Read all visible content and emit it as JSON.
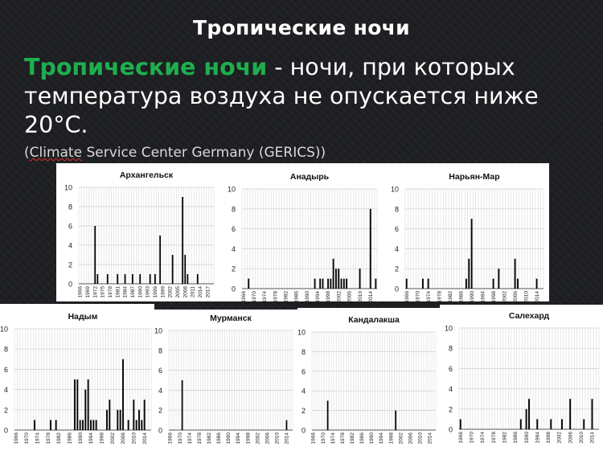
{
  "slide": {
    "title": "Тропические ночи",
    "definition_term": "Тропические ночи",
    "definition_rest": " - ночи, при которых температура воздуха не опускается ниже 20°С.",
    "source_open": "(",
    "source_word": "Climate",
    "source_rest": " Service Center Germany (GERICS))"
  },
  "chart_data": [
    {
      "type": "bar",
      "title": "Архангельск",
      "ylim": [
        0,
        10
      ],
      "yticks": [
        "0",
        "2",
        "4",
        "6",
        "8",
        "10"
      ],
      "xticks": [
        "1966",
        "1969",
        "1972",
        "1975",
        "1978",
        "1981",
        "1984",
        "1987",
        "1990",
        "1993",
        "1996",
        "1999",
        "2002",
        "2005",
        "2008",
        "2011",
        "2014",
        "2017"
      ],
      "x": [
        1972,
        1973,
        1977,
        1981,
        1984,
        1987,
        1990,
        1994,
        1996,
        1998,
        2003,
        2007,
        2008,
        2009,
        2013
      ],
      "values": [
        6,
        1,
        1,
        1,
        1,
        1,
        1,
        1,
        1,
        5,
        3,
        9,
        3,
        1,
        1
      ],
      "grid": true
    },
    {
      "type": "bar",
      "title": "Анадырь",
      "ylim": [
        0,
        10
      ],
      "yticks": [
        "0",
        "2",
        "4",
        "6",
        "8",
        "10"
      ],
      "xticks": [
        "1966",
        "1970",
        "1974",
        "1978",
        "1982",
        "1986",
        "1990",
        "1994",
        "1998",
        "2002",
        "2006",
        "2010",
        "2014"
      ],
      "x": [
        1968,
        1993,
        1995,
        1996,
        1998,
        1999,
        2000,
        2001,
        2002,
        2003,
        2004,
        2005,
        2010,
        2014,
        2016
      ],
      "values": [
        1,
        1,
        1,
        1,
        1,
        1,
        3,
        2,
        2,
        1,
        1,
        1,
        2,
        8,
        1
      ],
      "grid": true
    },
    {
      "type": "bar",
      "title": "Нарьян-Мар",
      "ylim": [
        0,
        10
      ],
      "yticks": [
        "0",
        "2",
        "4",
        "6",
        "8",
        "10"
      ],
      "xticks": [
        "1966",
        "1970",
        "1974",
        "1978",
        "1982",
        "1986",
        "1990",
        "1994",
        "1998",
        "2002",
        "2006",
        "2010",
        "2014"
      ],
      "x": [
        1966,
        1972,
        1974,
        1988,
        1989,
        1990,
        1998,
        2000,
        2006,
        2007,
        2014
      ],
      "values": [
        1,
        1,
        1,
        1,
        3,
        7,
        1,
        2,
        3,
        1,
        1
      ],
      "grid": true
    },
    {
      "type": "bar",
      "title": "Надым",
      "ylim": [
        0,
        10
      ],
      "yticks": [
        "0",
        "2",
        "4",
        "6",
        "8",
        "10"
      ],
      "xticks": [
        "1966",
        "1970",
        "1974",
        "1978",
        "1982",
        "1986",
        "1990",
        "1994",
        "1998",
        "2002",
        "2006",
        "2010",
        "2014"
      ],
      "x": [
        1973,
        1979,
        1981,
        1988,
        1989,
        1990,
        1991,
        1992,
        1993,
        1994,
        1995,
        1996,
        2000,
        2001,
        2004,
        2005,
        2006,
        2008,
        2010,
        2011,
        2012,
        2013,
        2014
      ],
      "values": [
        1,
        1,
        1,
        5,
        5,
        1,
        1,
        4,
        5,
        1,
        1,
        1,
        2,
        3,
        2,
        2,
        7,
        1,
        3,
        1,
        2,
        1,
        3
      ],
      "grid": true
    },
    {
      "type": "bar",
      "title": "Мурманск",
      "ylim": [
        0,
        10
      ],
      "yticks": [
        "0",
        "2",
        "4",
        "6",
        "8",
        "10"
      ],
      "xticks": [
        "1966",
        "1970",
        "1974",
        "1978",
        "1982",
        "1986",
        "1990",
        "1994",
        "1998",
        "2002",
        "2006",
        "2010",
        "2014"
      ],
      "x": [
        1971,
        2014
      ],
      "values": [
        5,
        1
      ],
      "grid": true
    },
    {
      "type": "bar",
      "title": "Кандалакша",
      "ylim": [
        0,
        10
      ],
      "yticks": [
        "0",
        "2",
        "4",
        "6",
        "8",
        "10"
      ],
      "xticks": [
        "1966",
        "1970",
        "1974",
        "1978",
        "1982",
        "1986",
        "1990",
        "1994",
        "1998",
        "2002",
        "2006",
        "2010",
        "2014"
      ],
      "x": [
        1972,
        2000
      ],
      "values": [
        3,
        2
      ],
      "grid": true
    },
    {
      "type": "bar",
      "title": "Салехард",
      "ylim": [
        0,
        10
      ],
      "yticks": [
        "0",
        "2",
        "4",
        "6",
        "8",
        "10"
      ],
      "xticks": [
        "1966",
        "1970",
        "1974",
        "1978",
        "1982",
        "1986",
        "1990",
        "1994",
        "1998",
        "2002",
        "2006",
        "2010",
        "2014"
      ],
      "x": [
        1966,
        1988,
        1990,
        1991,
        1994,
        1999,
        2003,
        2006,
        2011,
        2014
      ],
      "values": [
        1,
        1,
        2,
        3,
        1,
        1,
        1,
        3,
        1,
        3
      ],
      "grid": true
    }
  ]
}
